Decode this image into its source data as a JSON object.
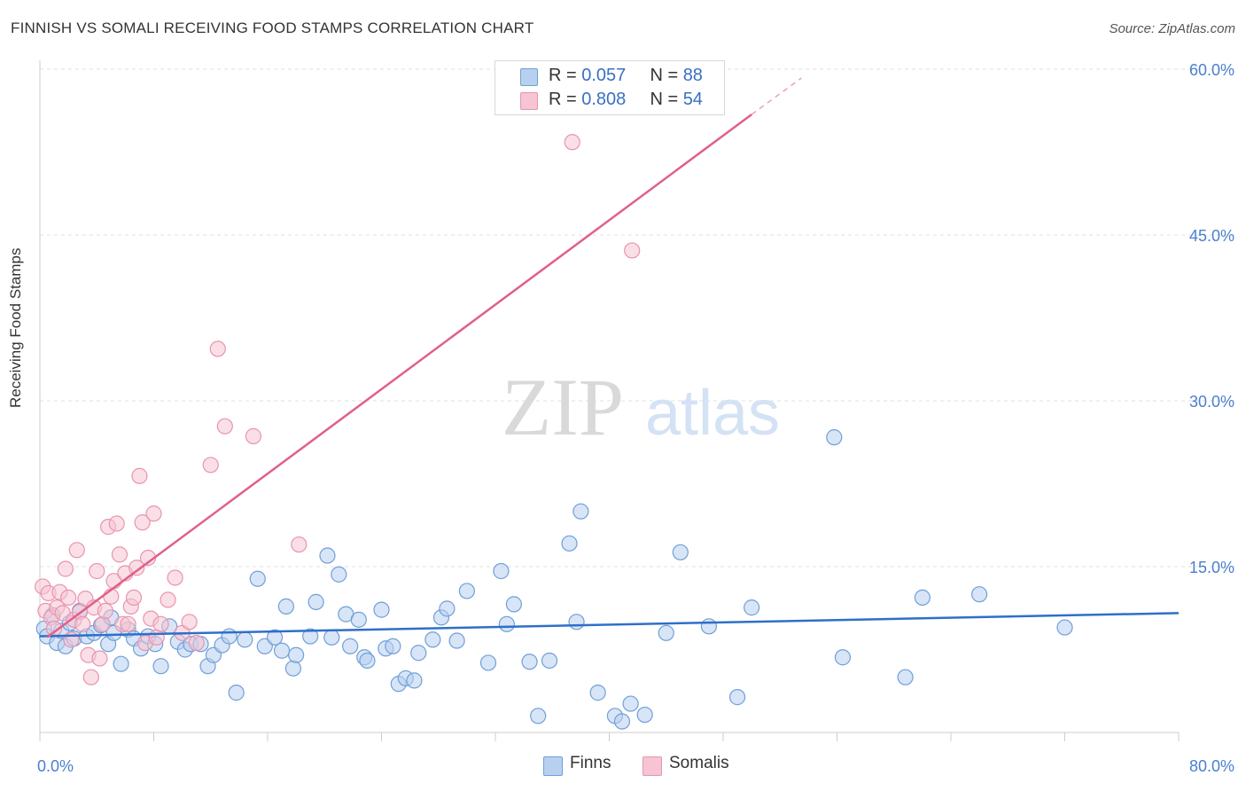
{
  "title": "FINNISH VS SOMALI RECEIVING FOOD STAMPS CORRELATION CHART",
  "source": "Source: ZipAtlas.com",
  "watermark": {
    "zip": "ZIP",
    "atlas": "atlas"
  },
  "colors": {
    "finns_fill": "#b8d0f0",
    "finns_stroke": "#6f9fd8",
    "finns_line": "#2f6fc8",
    "somalis_fill": "#f6c4d3",
    "somalis_stroke": "#e994ae",
    "somalis_line": "#e0608a",
    "axis_text": "#4a7fcf",
    "grid": "#e2e2e2"
  },
  "legend": {
    "finns": {
      "r_label": "R = ",
      "r_value": "0.057",
      "n_label": "N = ",
      "n_value": "88"
    },
    "somalis": {
      "r_label": "R = ",
      "r_value": "0.808",
      "n_label": "N = ",
      "n_value": "54"
    },
    "bottom": {
      "finns": "Finns",
      "somalis": "Somalis"
    }
  },
  "chart_data": {
    "type": "scatter",
    "title": "FINNISH VS SOMALI RECEIVING FOOD STAMPS CORRELATION CHART",
    "xlabel": "",
    "ylabel": "Receiving Food Stamps",
    "xlim": [
      0,
      80
    ],
    "ylim": [
      0,
      60
    ],
    "x_tick_labels": [
      "0.0%",
      "80.0%"
    ],
    "y_ticks": [
      15,
      30,
      45,
      60
    ],
    "y_tick_labels": [
      "15.0%",
      "30.0%",
      "45.0%",
      "60.0%"
    ],
    "series": [
      {
        "name": "Finns",
        "r": 0.057,
        "n": 88,
        "trend": {
          "x": [
            0,
            80
          ],
          "y": [
            8.7,
            10.8
          ]
        },
        "points": [
          [
            0.3,
            9.4
          ],
          [
            0.5,
            8.7
          ],
          [
            0.9,
            10.6
          ],
          [
            1.2,
            8.1
          ],
          [
            1.5,
            9.2
          ],
          [
            1.8,
            7.8
          ],
          [
            2.1,
            9.9
          ],
          [
            2.4,
            8.5
          ],
          [
            2.8,
            11.0
          ],
          [
            3.3,
            8.7
          ],
          [
            3.8,
            9.0
          ],
          [
            4.3,
            9.7
          ],
          [
            4.8,
            8.0
          ],
          [
            5.2,
            9.0
          ],
          [
            5.7,
            6.2
          ],
          [
            6.2,
            9.3
          ],
          [
            6.6,
            8.5
          ],
          [
            7.1,
            7.6
          ],
          [
            7.6,
            8.7
          ],
          [
            8.1,
            8.0
          ],
          [
            8.5,
            6.0
          ],
          [
            9.1,
            9.6
          ],
          [
            9.7,
            8.2
          ],
          [
            10.2,
            7.5
          ],
          [
            10.6,
            8.0
          ],
          [
            11.3,
            8.0
          ],
          [
            11.8,
            6.0
          ],
          [
            12.2,
            7.0
          ],
          [
            12.8,
            7.9
          ],
          [
            13.3,
            8.7
          ],
          [
            13.8,
            3.6
          ],
          [
            14.4,
            8.4
          ],
          [
            15.3,
            13.9
          ],
          [
            15.8,
            7.8
          ],
          [
            16.5,
            8.6
          ],
          [
            17.0,
            7.4
          ],
          [
            17.3,
            11.4
          ],
          [
            17.8,
            5.8
          ],
          [
            18.0,
            7.0
          ],
          [
            19.0,
            8.7
          ],
          [
            19.4,
            11.8
          ],
          [
            20.2,
            16.0
          ],
          [
            20.5,
            8.6
          ],
          [
            21.0,
            14.3
          ],
          [
            21.5,
            10.7
          ],
          [
            21.8,
            7.8
          ],
          [
            22.4,
            10.2
          ],
          [
            22.8,
            6.8
          ],
          [
            23.0,
            6.5
          ],
          [
            24.0,
            11.1
          ],
          [
            24.3,
            7.6
          ],
          [
            24.8,
            7.8
          ],
          [
            25.2,
            4.4
          ],
          [
            25.7,
            4.9
          ],
          [
            26.3,
            4.7
          ],
          [
            26.6,
            7.2
          ],
          [
            27.6,
            8.4
          ],
          [
            28.2,
            10.4
          ],
          [
            28.6,
            11.2
          ],
          [
            29.3,
            8.3
          ],
          [
            30.0,
            12.8
          ],
          [
            31.5,
            6.3
          ],
          [
            32.4,
            14.6
          ],
          [
            32.8,
            9.8
          ],
          [
            33.3,
            11.6
          ],
          [
            34.4,
            6.4
          ],
          [
            35.0,
            1.5
          ],
          [
            35.8,
            6.5
          ],
          [
            37.2,
            17.1
          ],
          [
            37.7,
            10.0
          ],
          [
            38.0,
            20.0
          ],
          [
            39.2,
            3.6
          ],
          [
            40.4,
            1.5
          ],
          [
            40.9,
            1.0
          ],
          [
            41.5,
            2.6
          ],
          [
            42.5,
            1.6
          ],
          [
            44.0,
            9.0
          ],
          [
            45.0,
            16.3
          ],
          [
            47.0,
            9.6
          ],
          [
            49.0,
            3.2
          ],
          [
            50.0,
            11.3
          ],
          [
            55.8,
            26.7
          ],
          [
            56.4,
            6.8
          ],
          [
            60.8,
            5.0
          ],
          [
            66.0,
            12.5
          ],
          [
            62.0,
            12.2
          ],
          [
            72.0,
            9.5
          ],
          [
            5.0,
            10.4
          ]
        ]
      },
      {
        "name": "Somalis",
        "r": 0.808,
        "n": 54,
        "trend": {
          "x": [
            0.5,
            50
          ],
          "y": [
            8.6,
            55.9
          ]
        },
        "trend_dashed": {
          "x": [
            50,
            53.5
          ],
          "y": [
            55.9,
            59.2
          ]
        },
        "points": [
          [
            0.2,
            13.2
          ],
          [
            0.4,
            11.0
          ],
          [
            0.6,
            12.6
          ],
          [
            0.8,
            10.4
          ],
          [
            1.0,
            9.4
          ],
          [
            1.2,
            11.3
          ],
          [
            1.4,
            12.7
          ],
          [
            1.6,
            10.8
          ],
          [
            1.8,
            14.8
          ],
          [
            2.0,
            12.2
          ],
          [
            2.2,
            8.4
          ],
          [
            2.4,
            10.2
          ],
          [
            2.6,
            16.5
          ],
          [
            2.8,
            10.9
          ],
          [
            3.0,
            9.8
          ],
          [
            3.2,
            12.1
          ],
          [
            3.4,
            7.0
          ],
          [
            3.6,
            5.0
          ],
          [
            3.8,
            11.3
          ],
          [
            4.0,
            14.6
          ],
          [
            4.2,
            6.7
          ],
          [
            4.4,
            9.8
          ],
          [
            4.6,
            11.0
          ],
          [
            4.8,
            18.6
          ],
          [
            5.0,
            12.3
          ],
          [
            5.2,
            13.7
          ],
          [
            5.4,
            18.9
          ],
          [
            5.6,
            16.1
          ],
          [
            5.8,
            9.8
          ],
          [
            6.0,
            14.4
          ],
          [
            6.2,
            9.8
          ],
          [
            6.4,
            11.4
          ],
          [
            6.6,
            12.2
          ],
          [
            6.8,
            14.9
          ],
          [
            7.0,
            23.2
          ],
          [
            7.2,
            19.0
          ],
          [
            7.4,
            8.1
          ],
          [
            7.6,
            15.8
          ],
          [
            7.8,
            10.3
          ],
          [
            8.0,
            19.8
          ],
          [
            8.2,
            8.6
          ],
          [
            8.5,
            9.8
          ],
          [
            9.0,
            12.0
          ],
          [
            9.5,
            14.0
          ],
          [
            10.0,
            9.0
          ],
          [
            10.5,
            10.0
          ],
          [
            11.0,
            8.1
          ],
          [
            12.0,
            24.2
          ],
          [
            12.5,
            34.7
          ],
          [
            13.0,
            27.7
          ],
          [
            15.0,
            26.8
          ],
          [
            18.2,
            17.0
          ],
          [
            37.4,
            53.4
          ],
          [
            41.6,
            43.6
          ]
        ]
      }
    ]
  }
}
